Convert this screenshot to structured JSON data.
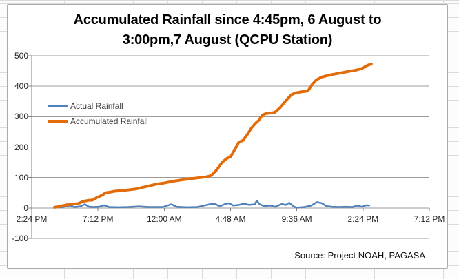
{
  "chart_data": {
    "type": "line",
    "title_line1": "Accumulated Rainfall since 4:45pm, 6 August to",
    "title_line2": "3:00pm,7 August (QCPU Station)",
    "source_note": "Source: Project NOAH, PAGASA",
    "x_tick_labels": [
      "2:24 PM",
      "7:12 PM",
      "12:00 AM",
      "4:48 AM",
      "9:36 AM",
      "2:24 PM",
      "7:12 PM"
    ],
    "x_axis_hours_span": 28.8,
    "y_ticks": [
      500,
      400,
      300,
      200,
      100,
      0,
      -100
    ],
    "ylim": [
      -100,
      500
    ],
    "grid": true,
    "legend_position": "inside-top-left",
    "colors": {
      "grid": "#9b9b9b",
      "axis": "#808080"
    },
    "series": [
      {
        "name": "Actual Rainfall",
        "color": "#4F81BD",
        "width": 2.5,
        "points": [
          [
            1.65,
            2
          ],
          [
            2.25,
            3
          ],
          [
            2.75,
            8
          ],
          [
            3.1,
            3
          ],
          [
            3.5,
            5
          ],
          [
            3.85,
            12
          ],
          [
            4.15,
            4
          ],
          [
            4.5,
            3
          ],
          [
            4.9,
            4
          ],
          [
            5.25,
            9
          ],
          [
            5.6,
            3
          ],
          [
            6.25,
            2
          ],
          [
            7.0,
            3
          ],
          [
            7.75,
            5
          ],
          [
            8.5,
            3
          ],
          [
            9.5,
            3
          ],
          [
            10.1,
            12
          ],
          [
            10.5,
            4
          ],
          [
            11.25,
            2
          ],
          [
            12.0,
            3
          ],
          [
            12.5,
            8
          ],
          [
            12.9,
            12
          ],
          [
            13.25,
            14
          ],
          [
            13.6,
            5
          ],
          [
            14.0,
            13
          ],
          [
            14.3,
            16
          ],
          [
            14.6,
            8
          ],
          [
            15.0,
            10
          ],
          [
            15.35,
            14
          ],
          [
            15.75,
            10
          ],
          [
            16.15,
            12
          ],
          [
            16.3,
            24
          ],
          [
            16.5,
            12
          ],
          [
            16.85,
            6
          ],
          [
            17.25,
            8
          ],
          [
            17.65,
            4
          ],
          [
            18.1,
            13
          ],
          [
            18.4,
            10
          ],
          [
            18.65,
            17
          ],
          [
            19.0,
            4
          ],
          [
            19.25,
            1
          ],
          [
            19.75,
            3
          ],
          [
            20.25,
            8
          ],
          [
            20.65,
            19
          ],
          [
            21.0,
            16
          ],
          [
            21.35,
            6
          ],
          [
            21.75,
            4
          ],
          [
            22.25,
            3
          ],
          [
            22.75,
            4
          ],
          [
            23.25,
            3
          ],
          [
            23.6,
            8
          ],
          [
            23.9,
            4
          ],
          [
            24.25,
            9
          ],
          [
            24.45,
            8
          ]
        ]
      },
      {
        "name": "Accumulated Rainfall",
        "color": "#E36C0A",
        "width": 4,
        "points": [
          [
            1.65,
            2
          ],
          [
            2.0,
            5
          ],
          [
            2.5,
            10
          ],
          [
            3.0,
            13
          ],
          [
            3.35,
            14
          ],
          [
            3.75,
            22
          ],
          [
            4.1,
            25
          ],
          [
            4.4,
            26
          ],
          [
            4.75,
            35
          ],
          [
            5.1,
            42
          ],
          [
            5.35,
            50
          ],
          [
            5.65,
            52
          ],
          [
            6.0,
            55
          ],
          [
            6.75,
            58
          ],
          [
            7.5,
            62
          ],
          [
            8.25,
            70
          ],
          [
            9.0,
            78
          ],
          [
            9.6,
            82
          ],
          [
            10.25,
            88
          ],
          [
            10.85,
            92
          ],
          [
            11.5,
            96
          ],
          [
            12.25,
            100
          ],
          [
            12.75,
            103
          ],
          [
            13.0,
            107
          ],
          [
            13.4,
            125
          ],
          [
            13.75,
            148
          ],
          [
            14.1,
            162
          ],
          [
            14.4,
            168
          ],
          [
            14.75,
            195
          ],
          [
            15.0,
            216
          ],
          [
            15.3,
            222
          ],
          [
            15.6,
            240
          ],
          [
            15.9,
            262
          ],
          [
            16.2,
            278
          ],
          [
            16.45,
            288
          ],
          [
            16.7,
            305
          ],
          [
            16.95,
            310
          ],
          [
            17.6,
            314
          ],
          [
            18.0,
            330
          ],
          [
            18.4,
            352
          ],
          [
            18.8,
            372
          ],
          [
            19.1,
            378
          ],
          [
            19.6,
            382
          ],
          [
            20.0,
            384
          ],
          [
            20.3,
            405
          ],
          [
            20.6,
            420
          ],
          [
            21.0,
            430
          ],
          [
            21.6,
            437
          ],
          [
            22.3,
            443
          ],
          [
            23.0,
            449
          ],
          [
            23.5,
            453
          ],
          [
            23.9,
            458
          ],
          [
            24.3,
            468
          ],
          [
            24.6,
            473
          ]
        ]
      }
    ]
  }
}
